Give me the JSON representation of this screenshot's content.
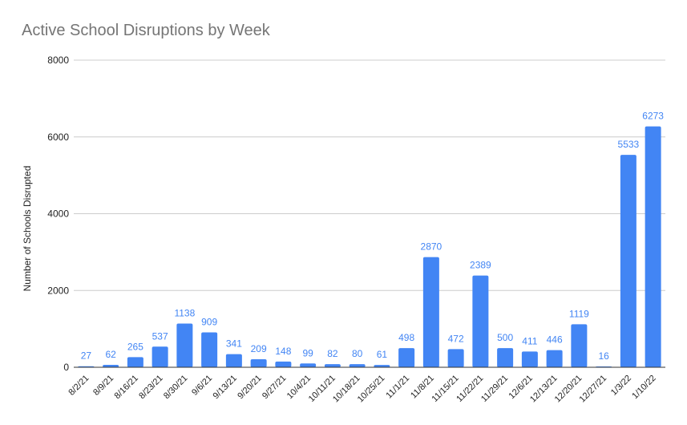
{
  "chart_data": {
    "type": "bar",
    "title": "Active School Disruptions by Week",
    "xlabel": "",
    "ylabel": "Number of Schools Disrupted",
    "ylim": [
      0,
      8000
    ],
    "yticks": [
      0,
      2000,
      4000,
      6000,
      8000
    ],
    "grid": true,
    "legend": "none",
    "bar_color": "#4285f4",
    "label_color": "#4285f4",
    "categories": [
      "8/2/21",
      "8/9/21",
      "8/16/21",
      "8/23/21",
      "8/30/21",
      "9/6/21",
      "9/13/21",
      "9/20/21",
      "9/27/21",
      "10/4/21",
      "10/11/21",
      "10/18/21",
      "10/25/21",
      "11/1/21",
      "11/8/21",
      "11/15/21",
      "11/22/21",
      "11/29/21",
      "12/6/21",
      "12/13/21",
      "12/20/21",
      "12/27/21",
      "1/3/22",
      "1/10/22"
    ],
    "values": [
      27,
      62,
      265,
      537,
      1138,
      909,
      341,
      209,
      148,
      99,
      82,
      80,
      61,
      498,
      2870,
      472,
      2389,
      500,
      411,
      446,
      1119,
      16,
      5533,
      6273
    ]
  }
}
